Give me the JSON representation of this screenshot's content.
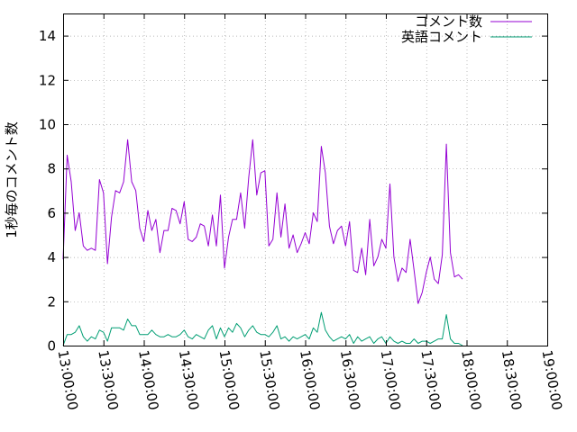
{
  "chart_data": {
    "type": "line",
    "ylabel": "1秒毎のコメント数",
    "xlabel": "",
    "title": "",
    "ylim": [
      0,
      15
    ],
    "yticks": [
      "0",
      "2",
      "4",
      "6",
      "8",
      "10",
      "12",
      "14"
    ],
    "xlim": [
      "13:00:00",
      "19:00:00"
    ],
    "xticks": [
      "13:00:00",
      "13:30:00",
      "14:00:00",
      "14:30:00",
      "15:00:00",
      "15:30:00",
      "16:00:00",
      "16:30:00",
      "17:00:00",
      "17:30:00",
      "18:00:00",
      "18:30:00",
      "19:00:00"
    ],
    "grid": true,
    "legend_position": "top-right",
    "x_step_minutes": 3,
    "x_start": "13:00:00",
    "series": [
      {
        "name": "コメント数",
        "color": "#9400d3",
        "values": [
          3.9,
          8.6,
          7.4,
          5.2,
          6.0,
          4.5,
          4.3,
          4.4,
          4.3,
          7.5,
          6.9,
          3.7,
          5.8,
          7.0,
          6.9,
          7.4,
          9.3,
          7.4,
          7.0,
          5.3,
          4.7,
          6.1,
          5.2,
          5.7,
          4.2,
          5.2,
          5.2,
          6.2,
          6.1,
          5.5,
          6.5,
          4.8,
          4.7,
          4.9,
          5.5,
          5.4,
          4.5,
          5.9,
          4.5,
          6.8,
          3.5,
          4.9,
          5.7,
          5.7,
          6.9,
          5.3,
          7.6,
          9.3,
          6.8,
          7.8,
          7.9,
          4.5,
          4.8,
          6.9,
          4.9,
          6.4,
          4.4,
          5.0,
          4.2,
          4.6,
          5.1,
          4.6,
          6.0,
          5.6,
          9.0,
          7.8,
          5.4,
          4.6,
          5.2,
          5.4,
          4.5,
          5.6,
          3.4,
          3.3,
          4.4,
          3.2,
          5.7,
          3.6,
          4.0,
          4.8,
          4.4,
          7.3,
          4.0,
          2.9,
          3.5,
          3.3,
          4.8,
          3.4,
          1.9,
          2.4,
          3.3,
          4.0,
          3.0,
          2.8,
          4.1,
          9.1,
          4.2,
          3.1,
          3.2,
          3.0
        ]
      },
      {
        "name": "英語コメント",
        "color": "#009e73",
        "values": [
          0.0,
          0.5,
          0.5,
          0.6,
          0.9,
          0.4,
          0.2,
          0.4,
          0.3,
          0.7,
          0.6,
          0.2,
          0.8,
          0.8,
          0.8,
          0.7,
          1.2,
          0.9,
          0.9,
          0.5,
          0.5,
          0.5,
          0.7,
          0.5,
          0.4,
          0.4,
          0.5,
          0.4,
          0.4,
          0.5,
          0.7,
          0.4,
          0.3,
          0.5,
          0.4,
          0.3,
          0.7,
          0.9,
          0.3,
          0.8,
          0.4,
          0.8,
          0.6,
          1.0,
          0.8,
          0.4,
          0.7,
          0.9,
          0.6,
          0.5,
          0.5,
          0.4,
          0.6,
          0.9,
          0.3,
          0.4,
          0.2,
          0.4,
          0.3,
          0.4,
          0.5,
          0.3,
          0.8,
          0.6,
          1.5,
          0.7,
          0.4,
          0.2,
          0.3,
          0.4,
          0.3,
          0.5,
          0.1,
          0.4,
          0.2,
          0.3,
          0.4,
          0.1,
          0.3,
          0.4,
          0.1,
          0.4,
          0.2,
          0.1,
          0.2,
          0.1,
          0.1,
          0.3,
          0.1,
          0.2,
          0.2,
          0.1,
          0.2,
          0.3,
          0.3,
          1.4,
          0.3,
          0.1,
          0.1,
          0.0
        ]
      }
    ]
  }
}
